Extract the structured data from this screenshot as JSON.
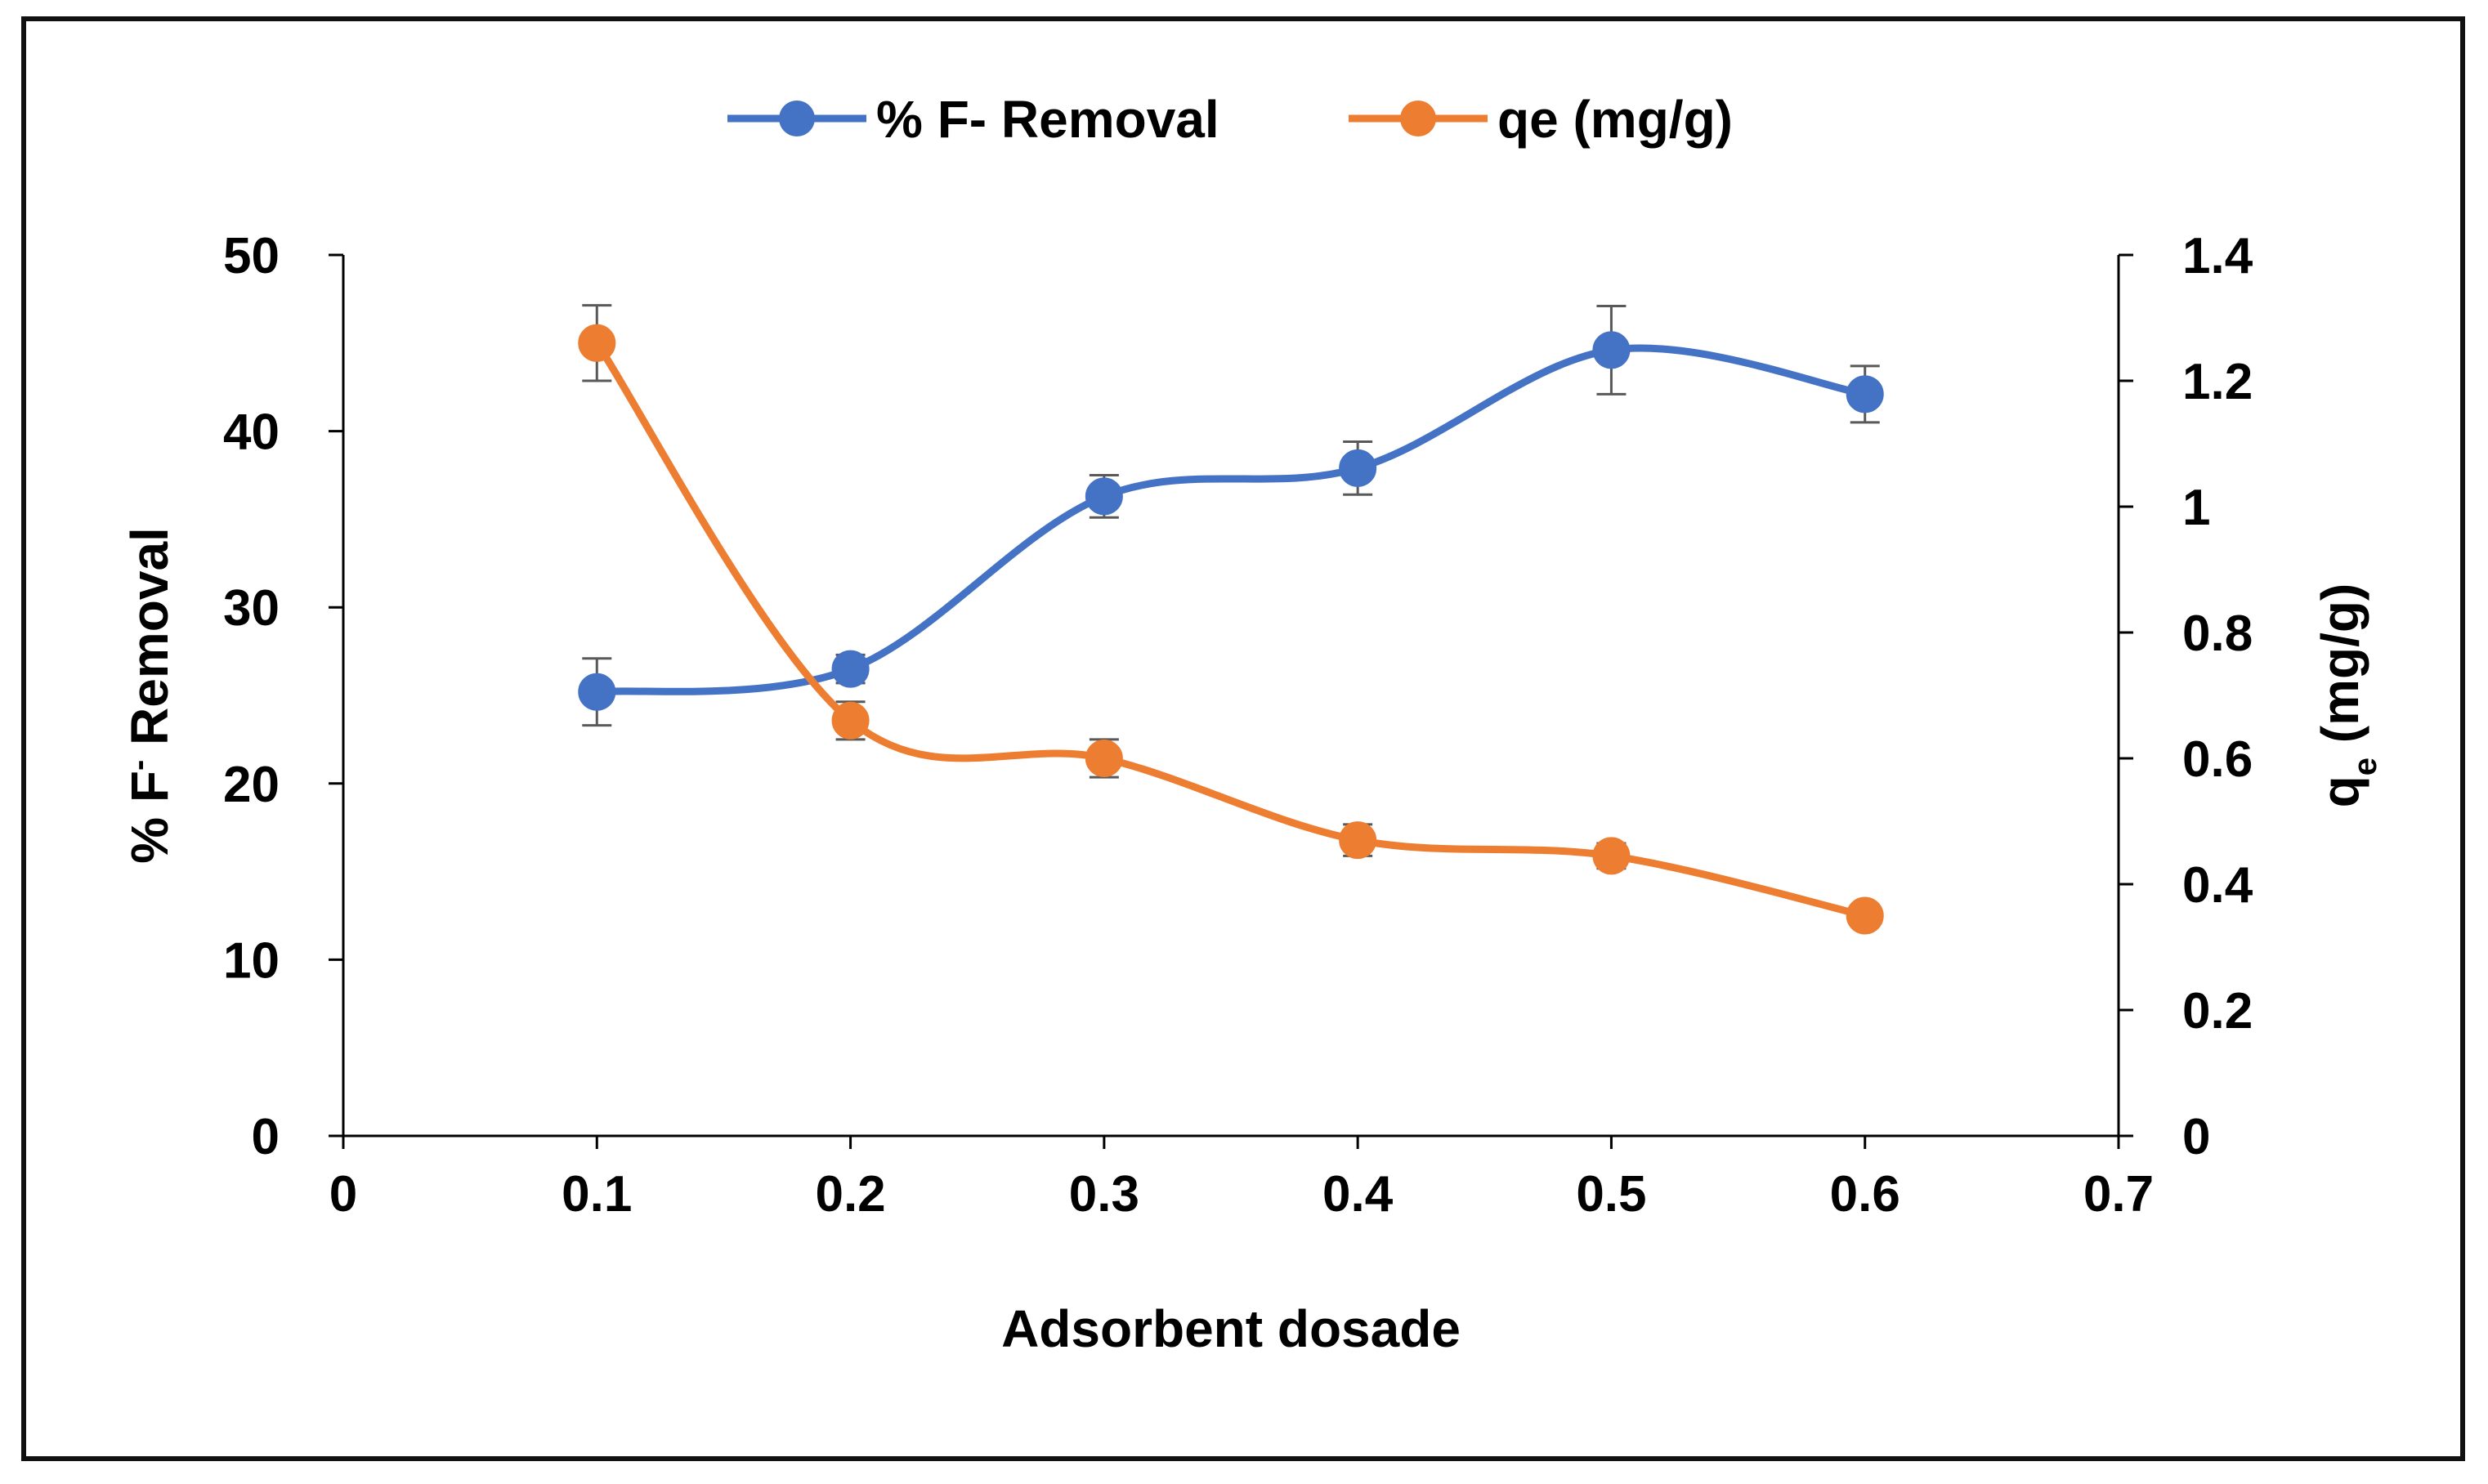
{
  "chart_data": {
    "type": "line",
    "x": [
      0.1,
      0.2,
      0.3,
      0.4,
      0.5,
      0.6
    ],
    "xlabel": "Adsorbent dosade",
    "xlim": [
      0,
      0.7
    ],
    "xticks": [
      "0",
      "0.1",
      "0.2",
      "0.3",
      "0.4",
      "0.5",
      "0.6",
      "0.7"
    ],
    "ylabel_left": {
      "main": "% F",
      "superscript": "-",
      "rest": " Removal"
    },
    "ylim_left": [
      0,
      50
    ],
    "yticks_left": [
      "0",
      "10",
      "20",
      "30",
      "40",
      "50"
    ],
    "ylabel_right": {
      "main": "q",
      "subscript": "e",
      "rest": " (mg/g)"
    },
    "ylim_right": [
      0,
      1.4
    ],
    "yticks_right": [
      "0",
      "0.2",
      "0.4",
      "0.6",
      "0.8",
      "1",
      "1.2",
      "1.4"
    ],
    "legend_position": "top-center",
    "grid": false,
    "smoothed": true,
    "series": [
      {
        "name": "% F- Removal",
        "axis": "left",
        "color": "#4472C4",
        "values": [
          25.2,
          26.5,
          36.3,
          37.9,
          44.6,
          42.1
        ],
        "error": [
          1.9,
          0.8,
          1.2,
          1.5,
          2.5,
          1.6
        ]
      },
      {
        "name": "qe (mg/g)",
        "axis": "right",
        "color": "#ED7D31",
        "values": [
          1.26,
          0.66,
          0.6,
          0.47,
          0.445,
          0.35
        ],
        "error": [
          0.06,
          0.03,
          0.03,
          0.025,
          0.02,
          0.015
        ]
      }
    ]
  }
}
